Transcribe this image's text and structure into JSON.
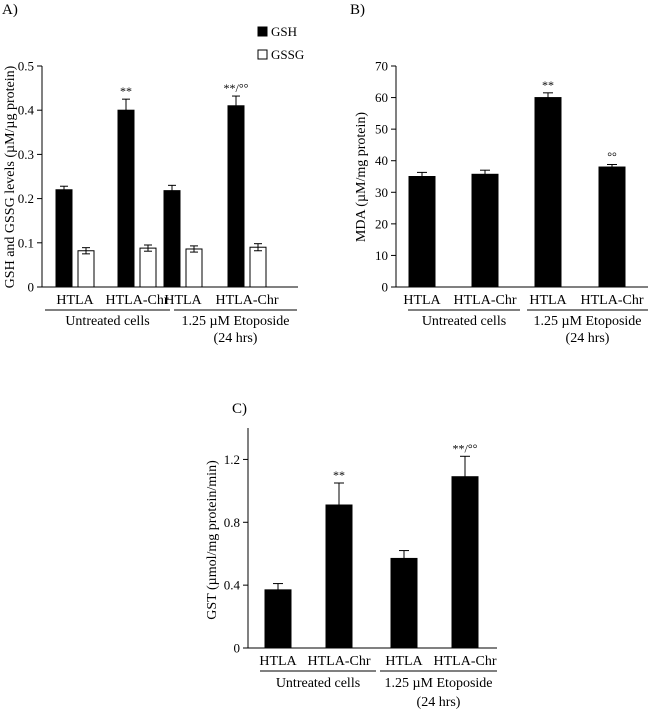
{
  "chart_data": [
    {
      "id": "A",
      "panel_label": "A)",
      "type": "bar",
      "ylabel": "GSH and GSSG levels (µM/µg protein)",
      "ylim": [
        0,
        0.5
      ],
      "yticks": [
        "0",
        "0.1",
        "0.2",
        "0.3",
        "0.4",
        "0.5"
      ],
      "categories": [
        "HTLA",
        "HTLA-Chr",
        "HTLA",
        "HTLA-Chr"
      ],
      "groups": [
        {
          "label": "Untreated cells",
          "categories": [
            0,
            1
          ]
        },
        {
          "label": "1.25 µM Etoposide",
          "label2": "(24 hrs)",
          "categories": [
            2,
            3
          ]
        }
      ],
      "legend": [
        "GSH",
        "GSSG"
      ],
      "series": [
        {
          "name": "GSH",
          "fill": "#000000",
          "values": [
            0.22,
            0.4,
            0.218,
            0.41
          ],
          "errors": [
            0.008,
            0.025,
            0.012,
            0.022
          ]
        },
        {
          "name": "GSSG",
          "fill": "#ffffff",
          "values": [
            0.082,
            0.088,
            0.086,
            0.09
          ],
          "errors": [
            0.007,
            0.007,
            0.007,
            0.008
          ]
        }
      ],
      "annotations": [
        {
          "category": 1,
          "series": 0,
          "text": "**"
        },
        {
          "category": 3,
          "series": 0,
          "text": "**/°°"
        }
      ]
    },
    {
      "id": "B",
      "panel_label": "B)",
      "type": "bar",
      "ylabel": "MDA (µM/mg protein)",
      "ylim": [
        0,
        70
      ],
      "yticks": [
        "0",
        "10",
        "20",
        "30",
        "40",
        "50",
        "60",
        "70"
      ],
      "categories": [
        "HTLA",
        "HTLA-Chr",
        "HTLA",
        "HTLA-Chr"
      ],
      "groups": [
        {
          "label": "Untreated cells",
          "categories": [
            0,
            1
          ]
        },
        {
          "label": "1.25 µM Etoposide",
          "label2": "(24 hrs)",
          "categories": [
            2,
            3
          ]
        }
      ],
      "series": [
        {
          "name": "MDA",
          "fill": "#000000",
          "values": [
            35,
            35.7,
            60,
            38
          ],
          "errors": [
            1.3,
            1.3,
            1.5,
            0.8
          ]
        }
      ],
      "annotations": [
        {
          "category": 2,
          "series": 0,
          "text": "**"
        },
        {
          "category": 3,
          "series": 0,
          "text": "°°"
        }
      ]
    },
    {
      "id": "C",
      "panel_label": "C)",
      "type": "bar",
      "ylabel": "GST (µmol/mg protein/min)",
      "ylim": [
        0,
        1.4
      ],
      "yticks": [
        "0",
        "0.4",
        "0.8",
        "1.2"
      ],
      "categories": [
        "HTLA",
        "HTLA-Chr",
        "HTLA",
        "HTLA-Chr"
      ],
      "groups": [
        {
          "label": "Untreated cells",
          "categories": [
            0,
            1
          ]
        },
        {
          "label": "1.25 µM Etoposide",
          "label2": "(24 hrs)",
          "categories": [
            2,
            3
          ]
        }
      ],
      "series": [
        {
          "name": "GST",
          "fill": "#000000",
          "values": [
            0.37,
            0.91,
            0.57,
            1.09
          ],
          "errors": [
            0.04,
            0.14,
            0.05,
            0.13
          ]
        }
      ],
      "annotations": [
        {
          "category": 1,
          "series": 0,
          "text": "**"
        },
        {
          "category": 3,
          "series": 0,
          "text": "**/°°"
        }
      ]
    }
  ]
}
